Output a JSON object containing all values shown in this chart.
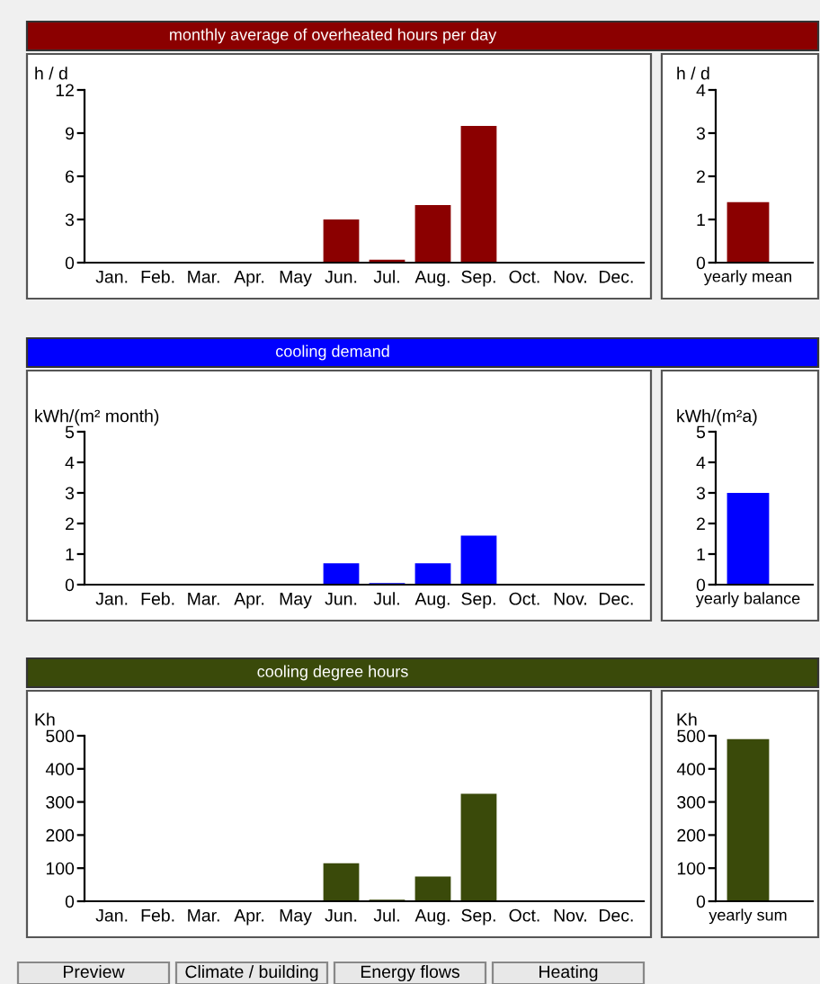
{
  "chart_data": [
    {
      "type": "bar",
      "title": "monthly average of overheated hours per day",
      "ylabel": "h / d",
      "categories": [
        "Jan.",
        "Feb.",
        "Mar.",
        "Apr.",
        "May",
        "Jun.",
        "Jul.",
        "Aug.",
        "Sep.",
        "Oct.",
        "Nov.",
        "Dec."
      ],
      "series": [
        {
          "color": "#8b0000",
          "values": [
            0,
            0,
            0,
            0,
            0,
            3.0,
            0.2,
            4.0,
            9.5,
            0,
            0,
            0
          ]
        }
      ],
      "ylim": [
        0,
        12
      ],
      "yticks": [
        0,
        3,
        6,
        9,
        12
      ]
    },
    {
      "type": "bar",
      "ylabel": "h / d",
      "categories": [
        "yearly mean"
      ],
      "series": [
        {
          "color": "#8b0000",
          "values": [
            1.4
          ]
        }
      ],
      "ylim": [
        0,
        4
      ],
      "yticks": [
        0,
        1,
        2,
        3,
        4
      ]
    },
    {
      "type": "bar",
      "title": "cooling demand",
      "ylabel": "kWh/(m² month)",
      "categories": [
        "Jan.",
        "Feb.",
        "Mar.",
        "Apr.",
        "May",
        "Jun.",
        "Jul.",
        "Aug.",
        "Sep.",
        "Oct.",
        "Nov.",
        "Dec."
      ],
      "series": [
        {
          "color": "#0000ff",
          "values": [
            0,
            0,
            0,
            0,
            0,
            0.7,
            0.05,
            0.7,
            1.6,
            0,
            0,
            0
          ]
        }
      ],
      "ylim": [
        0,
        5
      ],
      "yticks": [
        0,
        1,
        2,
        3,
        4,
        5
      ]
    },
    {
      "type": "bar",
      "ylabel": "kWh/(m²a)",
      "categories": [
        "yearly balance"
      ],
      "series": [
        {
          "color": "#0000ff",
          "values": [
            3.0
          ]
        }
      ],
      "ylim": [
        0,
        5
      ],
      "yticks": [
        0,
        1,
        2,
        3,
        4,
        5
      ]
    },
    {
      "type": "bar",
      "title": "cooling degree hours",
      "ylabel": "Kh",
      "categories": [
        "Jan.",
        "Feb.",
        "Mar.",
        "Apr.",
        "May",
        "Jun.",
        "Jul.",
        "Aug.",
        "Sep.",
        "Oct.",
        "Nov.",
        "Dec."
      ],
      "series": [
        {
          "color": "#3a4a0a",
          "values": [
            0,
            0,
            0,
            0,
            0,
            115,
            5,
            75,
            325,
            0,
            0,
            0
          ]
        }
      ],
      "ylim": [
        0,
        500
      ],
      "yticks": [
        0,
        100,
        200,
        300,
        400,
        500
      ],
      "annotations": [
        "Preview",
        "Climate / building",
        "Energy flows",
        "Heating"
      ]
    },
    {
      "type": "bar",
      "ylabel": "Kh",
      "categories": [
        "yearly sum"
      ],
      "series": [
        {
          "color": "#3a4a0a",
          "values": [
            490
          ]
        }
      ],
      "ylim": [
        0,
        500
      ],
      "yticks": [
        0,
        100,
        200,
        300,
        400,
        500
      ]
    }
  ]
}
